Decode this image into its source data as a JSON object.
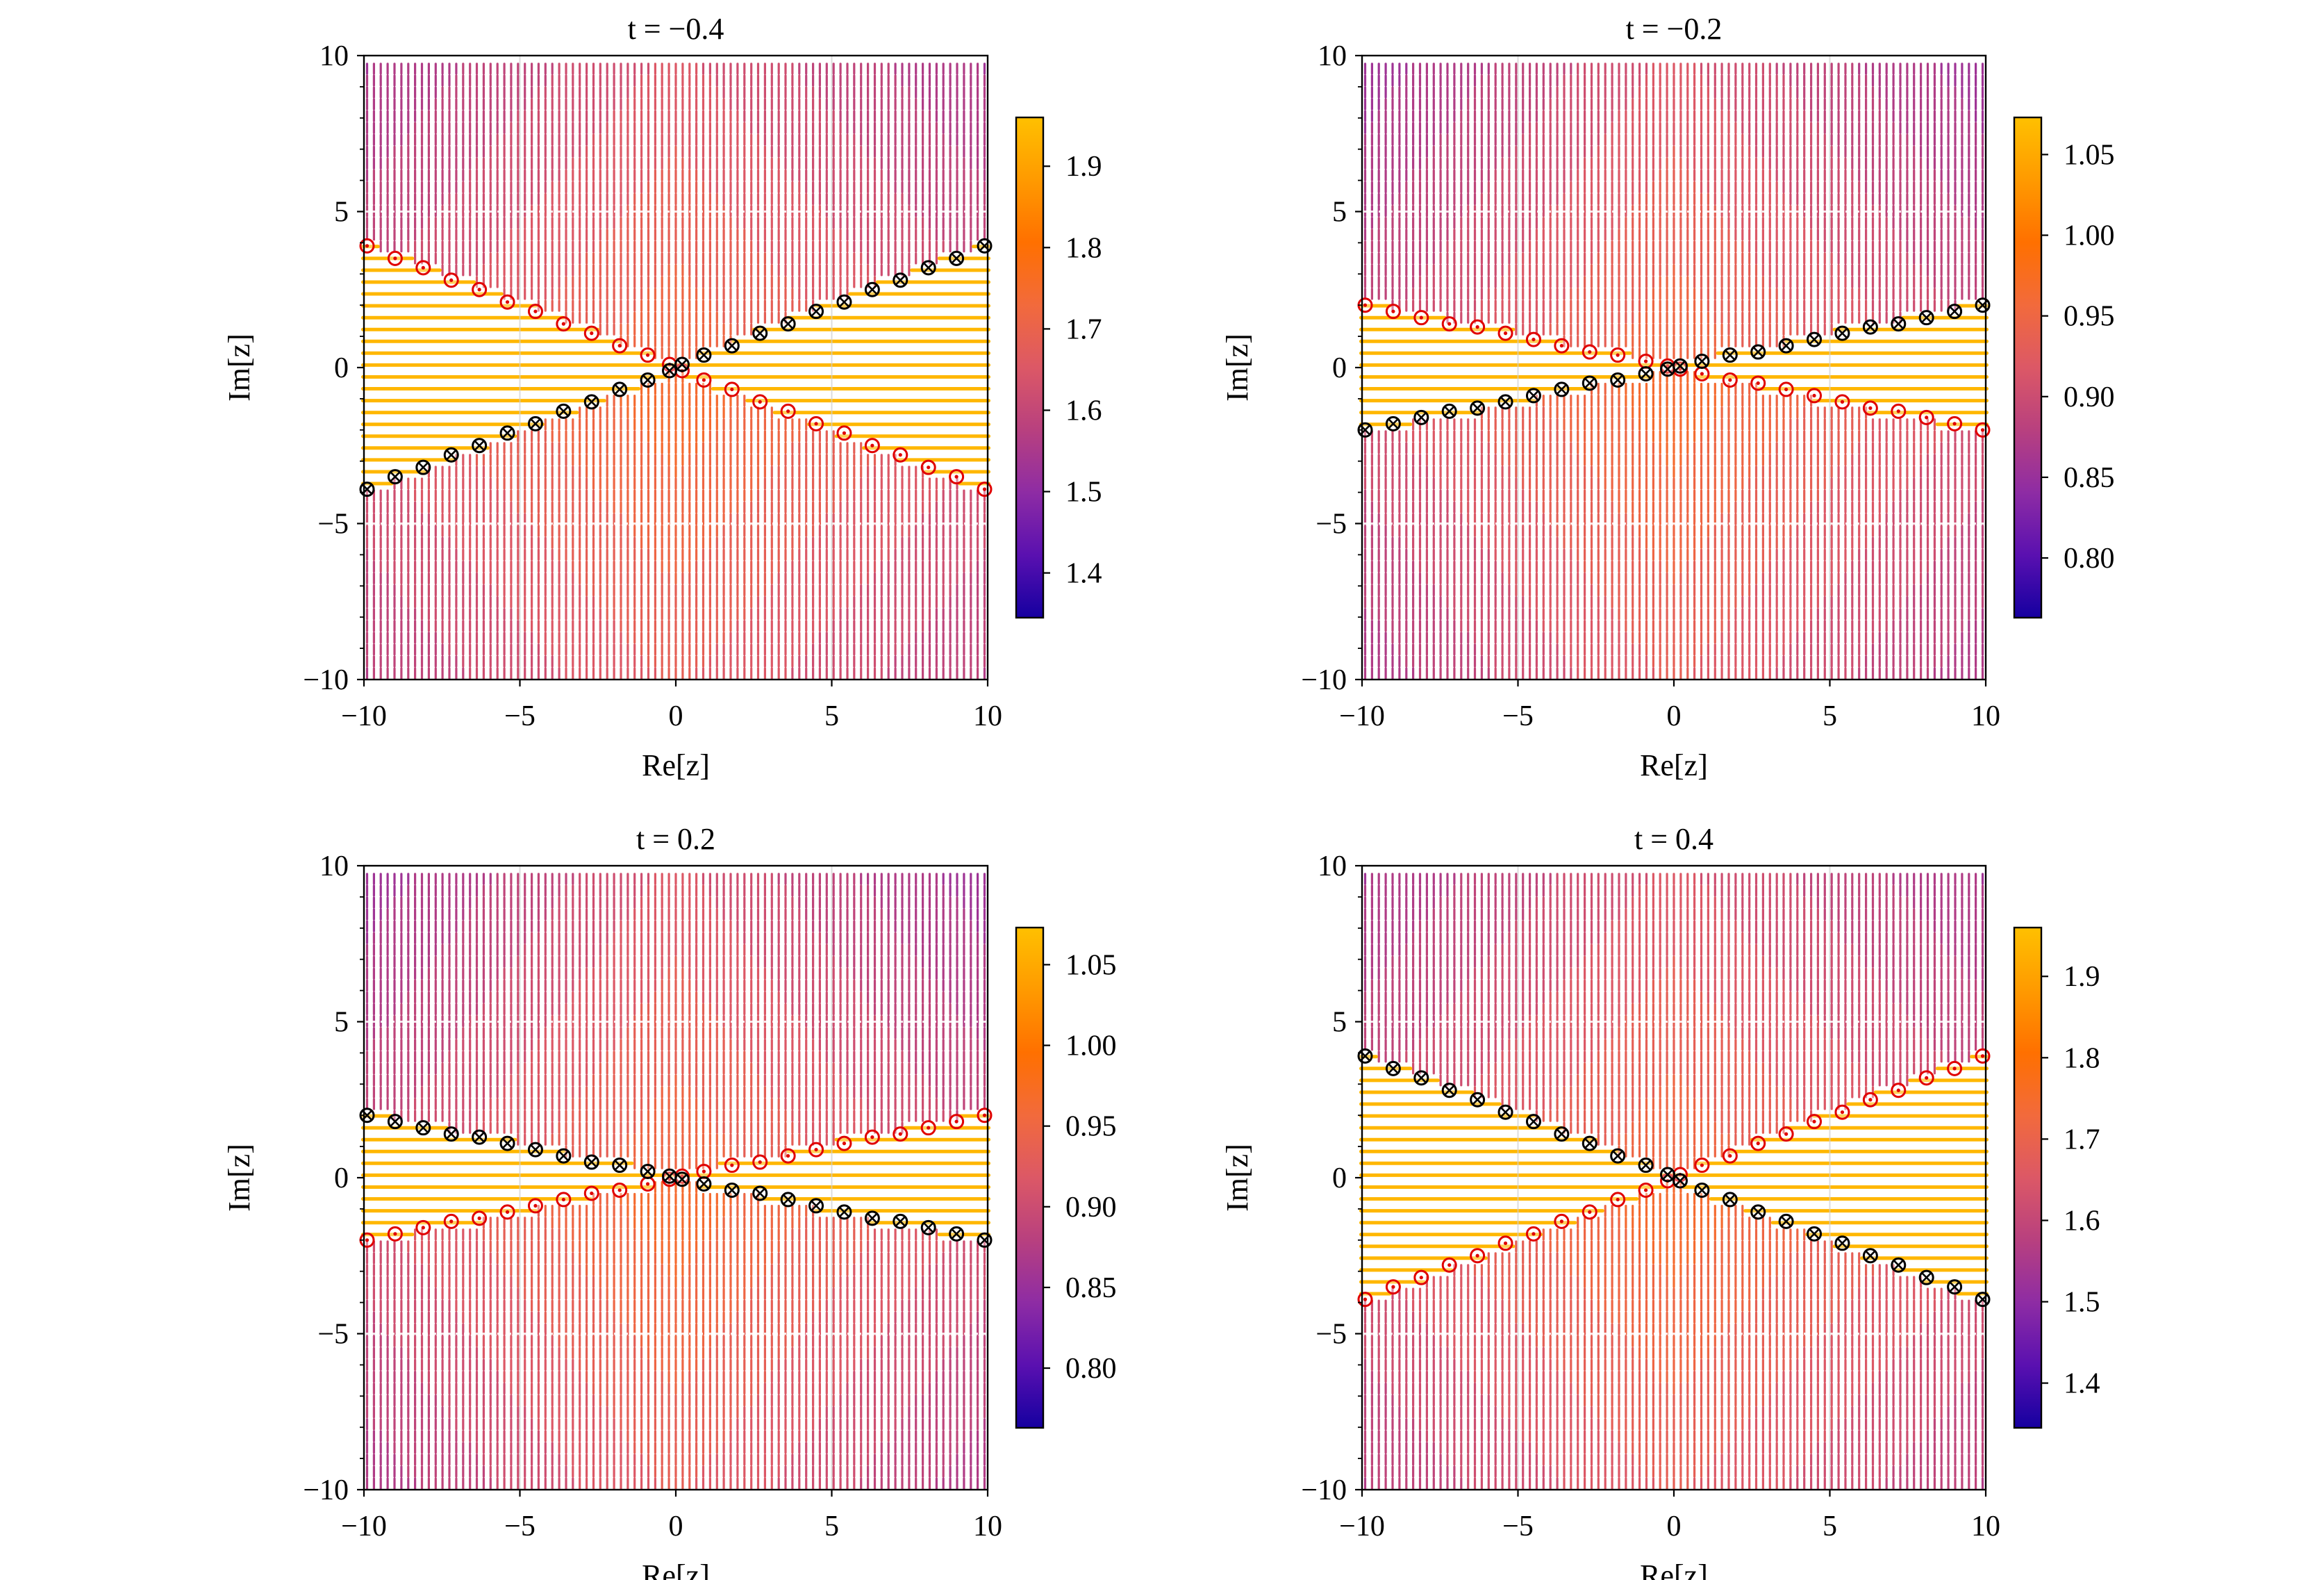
{
  "colormap": [
    "#1500a0",
    "#5a10b0",
    "#8e2ca4",
    "#b8407f",
    "#dc5866",
    "#f26a3c",
    "#ff7000",
    "#ff9a00",
    "#ffc000"
  ],
  "marker_colors": {
    "odot": "#e00000",
    "otimes": "#000000"
  },
  "chart_data": [
    {
      "type": "quiver",
      "title": "t = −0.4",
      "xlabel": "Re[z]",
      "ylabel": "Im[z]",
      "xlim": [
        -10,
        10
      ],
      "ylim": [
        -10,
        10
      ],
      "xticks": [
        -10,
        -5,
        0,
        5,
        10
      ],
      "xtick_labels": [
        "−10",
        "−5",
        "0",
        "5",
        "10"
      ],
      "yticks": [
        -10,
        -5,
        0,
        5,
        10
      ],
      "ytick_labels": [
        "−10",
        "−5",
        "0",
        "5",
        "10"
      ],
      "grid": true,
      "colorbar": {
        "range": [
          1.345,
          1.96
        ],
        "ticks": [
          1.4,
          1.5,
          1.6,
          1.7,
          1.8,
          1.9
        ],
        "tick_labels": [
          "1.4",
          "1.5",
          "1.6",
          "1.7",
          "1.8",
          "1.9"
        ]
      },
      "markers": {
        "odot": {
          "x": [
            -9.9,
            -9,
            -8.1,
            -7.2,
            -6.3,
            -5.4,
            -4.5,
            -3.6,
            -2.7,
            -1.8,
            -0.9,
            -0.2,
            0.2,
            0.9,
            1.8,
            2.7,
            3.6,
            4.5,
            5.4,
            6.3,
            7.2,
            8.1,
            9,
            9.9
          ],
          "y": [
            3.9,
            3.5,
            3.2,
            2.8,
            2.5,
            2.1,
            1.8,
            1.4,
            1.1,
            0.7,
            0.4,
            0.1,
            -0.1,
            -0.4,
            -0.7,
            -1.1,
            -1.4,
            -1.8,
            -2.1,
            -2.5,
            -2.8,
            -3.2,
            -3.5,
            -3.9
          ]
        },
        "otimes": {
          "x": [
            -9.9,
            -9,
            -8.1,
            -7.2,
            -6.3,
            -5.4,
            -4.5,
            -3.6,
            -2.7,
            -1.8,
            -0.9,
            -0.2,
            0.2,
            0.9,
            1.8,
            2.7,
            3.6,
            4.5,
            5.4,
            6.3,
            7.2,
            8.1,
            9,
            9.9
          ],
          "y": [
            -3.9,
            -3.5,
            -3.2,
            -2.8,
            -2.5,
            -2.1,
            -1.8,
            -1.4,
            -1.1,
            -0.7,
            -0.4,
            -0.1,
            0.1,
            0.4,
            0.7,
            1.1,
            1.4,
            1.8,
            2.1,
            2.5,
            2.8,
            3.2,
            3.5,
            3.9
          ]
        }
      }
    },
    {
      "type": "quiver",
      "title": "t = −0.2",
      "xlabel": "Re[z]",
      "ylabel": "Im[z]",
      "xlim": [
        -10,
        10
      ],
      "ylim": [
        -10,
        10
      ],
      "xticks": [
        -10,
        -5,
        0,
        5,
        10
      ],
      "xtick_labels": [
        "−10",
        "−5",
        "0",
        "5",
        "10"
      ],
      "yticks": [
        -10,
        -5,
        0,
        5,
        10
      ],
      "ytick_labels": [
        "−10",
        "−5",
        "0",
        "5",
        "10"
      ],
      "grid": true,
      "colorbar": {
        "range": [
          0.763,
          1.073
        ],
        "ticks": [
          0.8,
          0.85,
          0.9,
          0.95,
          1.0,
          1.05
        ],
        "tick_labels": [
          "0.80",
          "0.85",
          "0.90",
          "0.95",
          "1.00",
          "1.05"
        ]
      },
      "markers": {
        "odot": {
          "x": [
            -9.9,
            -9,
            -8.1,
            -7.2,
            -6.3,
            -5.4,
            -4.5,
            -3.6,
            -2.7,
            -1.8,
            -0.9,
            -0.2,
            0.2,
            0.9,
            1.8,
            2.7,
            3.6,
            4.5,
            5.4,
            6.3,
            7.2,
            8.1,
            9,
            9.9
          ],
          "y": [
            2.0,
            1.8,
            1.6,
            1.4,
            1.3,
            1.1,
            0.9,
            0.7,
            0.5,
            0.4,
            0.2,
            0.05,
            -0.05,
            -0.2,
            -0.4,
            -0.5,
            -0.7,
            -0.9,
            -1.1,
            -1.3,
            -1.4,
            -1.6,
            -1.8,
            -2.0
          ]
        },
        "otimes": {
          "x": [
            -9.9,
            -9,
            -8.1,
            -7.2,
            -6.3,
            -5.4,
            -4.5,
            -3.6,
            -2.7,
            -1.8,
            -0.9,
            -0.2,
            0.2,
            0.9,
            1.8,
            2.7,
            3.6,
            4.5,
            5.4,
            6.3,
            7.2,
            8.1,
            9,
            9.9
          ],
          "y": [
            -2.0,
            -1.8,
            -1.6,
            -1.4,
            -1.3,
            -1.1,
            -0.9,
            -0.7,
            -0.5,
            -0.4,
            -0.2,
            -0.05,
            0.05,
            0.2,
            0.4,
            0.5,
            0.7,
            0.9,
            1.1,
            1.3,
            1.4,
            1.6,
            1.8,
            2.0
          ]
        }
      }
    },
    {
      "type": "quiver",
      "title": "t = 0.2",
      "xlabel": "Re[z]",
      "ylabel": "Im[z]",
      "xlim": [
        -10,
        10
      ],
      "ylim": [
        -10,
        10
      ],
      "xticks": [
        -10,
        -5,
        0,
        5,
        10
      ],
      "xtick_labels": [
        "−10",
        "−5",
        "0",
        "5",
        "10"
      ],
      "yticks": [
        -10,
        -5,
        0,
        5,
        10
      ],
      "ytick_labels": [
        "−10",
        "−5",
        "0",
        "5",
        "10"
      ],
      "grid": true,
      "colorbar": {
        "range": [
          0.763,
          1.073
        ],
        "ticks": [
          0.8,
          0.85,
          0.9,
          0.95,
          1.0,
          1.05
        ],
        "tick_labels": [
          "0.80",
          "0.85",
          "0.90",
          "0.95",
          "1.00",
          "1.05"
        ]
      },
      "markers": {
        "odot": {
          "x": [
            -9.9,
            -9,
            -8.1,
            -7.2,
            -6.3,
            -5.4,
            -4.5,
            -3.6,
            -2.7,
            -1.8,
            -0.9,
            -0.2,
            0.2,
            0.9,
            1.8,
            2.7,
            3.6,
            4.5,
            5.4,
            6.3,
            7.2,
            8.1,
            9,
            9.9
          ],
          "y": [
            -2.0,
            -1.8,
            -1.6,
            -1.4,
            -1.3,
            -1.1,
            -0.9,
            -0.7,
            -0.5,
            -0.4,
            -0.2,
            -0.05,
            0.05,
            0.2,
            0.4,
            0.5,
            0.7,
            0.9,
            1.1,
            1.3,
            1.4,
            1.6,
            1.8,
            2.0
          ]
        },
        "otimes": {
          "x": [
            -9.9,
            -9,
            -8.1,
            -7.2,
            -6.3,
            -5.4,
            -4.5,
            -3.6,
            -2.7,
            -1.8,
            -0.9,
            -0.2,
            0.2,
            0.9,
            1.8,
            2.7,
            3.6,
            4.5,
            5.4,
            6.3,
            7.2,
            8.1,
            9,
            9.9
          ],
          "y": [
            2.0,
            1.8,
            1.6,
            1.4,
            1.3,
            1.1,
            0.9,
            0.7,
            0.5,
            0.4,
            0.2,
            0.05,
            -0.05,
            -0.2,
            -0.4,
            -0.5,
            -0.7,
            -0.9,
            -1.1,
            -1.3,
            -1.4,
            -1.6,
            -1.8,
            -2.0
          ]
        }
      }
    },
    {
      "type": "quiver",
      "title": "t = 0.4",
      "xlabel": "Re[z]",
      "ylabel": "Im[z]",
      "xlim": [
        -10,
        10
      ],
      "ylim": [
        -10,
        10
      ],
      "xticks": [
        -10,
        -5,
        0,
        5,
        10
      ],
      "xtick_labels": [
        "−10",
        "−5",
        "0",
        "5",
        "10"
      ],
      "yticks": [
        -10,
        -5,
        0,
        5,
        10
      ],
      "ytick_labels": [
        "−10",
        "−5",
        "0",
        "5",
        "10"
      ],
      "grid": true,
      "colorbar": {
        "range": [
          1.345,
          1.96
        ],
        "ticks": [
          1.4,
          1.5,
          1.6,
          1.7,
          1.8,
          1.9
        ],
        "tick_labels": [
          "1.4",
          "1.5",
          "1.6",
          "1.7",
          "1.8",
          "1.9"
        ]
      },
      "markers": {
        "odot": {
          "x": [
            -9.9,
            -9,
            -8.1,
            -7.2,
            -6.3,
            -5.4,
            -4.5,
            -3.6,
            -2.7,
            -1.8,
            -0.9,
            -0.2,
            0.2,
            0.9,
            1.8,
            2.7,
            3.6,
            4.5,
            5.4,
            6.3,
            7.2,
            8.1,
            9,
            9.9
          ],
          "y": [
            -3.9,
            -3.5,
            -3.2,
            -2.8,
            -2.5,
            -2.1,
            -1.8,
            -1.4,
            -1.1,
            -0.7,
            -0.4,
            -0.1,
            0.1,
            0.4,
            0.7,
            1.1,
            1.4,
            1.8,
            2.1,
            2.5,
            2.8,
            3.2,
            3.5,
            3.9
          ]
        },
        "otimes": {
          "x": [
            -9.9,
            -9,
            -8.1,
            -7.2,
            -6.3,
            -5.4,
            -4.5,
            -3.6,
            -2.7,
            -1.8,
            -0.9,
            -0.2,
            0.2,
            0.9,
            1.8,
            2.7,
            3.6,
            4.5,
            5.4,
            6.3,
            7.2,
            8.1,
            9,
            9.9
          ],
          "y": [
            3.9,
            3.5,
            3.2,
            2.8,
            2.5,
            2.1,
            1.8,
            1.4,
            1.1,
            0.7,
            0.4,
            0.1,
            -0.1,
            -0.4,
            -0.7,
            -1.1,
            -1.4,
            -1.8,
            -2.1,
            -2.5,
            -2.8,
            -3.2,
            -3.5,
            -3.9
          ]
        }
      }
    }
  ]
}
